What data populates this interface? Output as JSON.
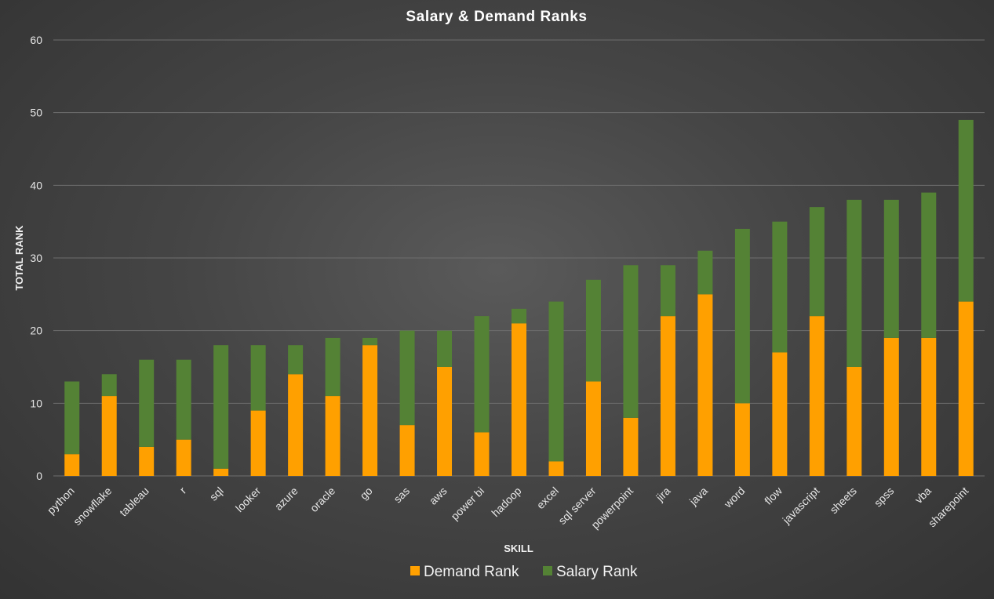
{
  "chart_data": {
    "type": "bar",
    "stacked": true,
    "title": "Salary & Demand Ranks",
    "xlabel": "SKILL",
    "ylabel": "TOTAL RANK",
    "ylim": [
      0,
      60
    ],
    "yticks": [
      0,
      10,
      20,
      30,
      40,
      50,
      60
    ],
    "grid": true,
    "legend_position": "bottom",
    "categories": [
      "python",
      "snowflake",
      "tableau",
      "r",
      "sql",
      "looker",
      "azure",
      "oracle",
      "go",
      "sas",
      "aws",
      "power bi",
      "hadoop",
      "excel",
      "sql server",
      "powerpoint",
      "jira",
      "java",
      "word",
      "flow",
      "javascript",
      "sheets",
      "spss",
      "vba",
      "sharepoint"
    ],
    "series": [
      {
        "name": "Demand Rank",
        "color": "#FFA000",
        "values": [
          3,
          11,
          4,
          5,
          1,
          9,
          14,
          11,
          18,
          7,
          15,
          6,
          21,
          2,
          13,
          8,
          22,
          25,
          10,
          17,
          22,
          15,
          19,
          19,
          24
        ]
      },
      {
        "name": "Salary Rank",
        "color": "#548235",
        "values": [
          10,
          3,
          12,
          11,
          17,
          9,
          4,
          8,
          1,
          13,
          5,
          16,
          2,
          22,
          14,
          21,
          7,
          6,
          24,
          18,
          15,
          23,
          19,
          20,
          25
        ]
      }
    ]
  }
}
